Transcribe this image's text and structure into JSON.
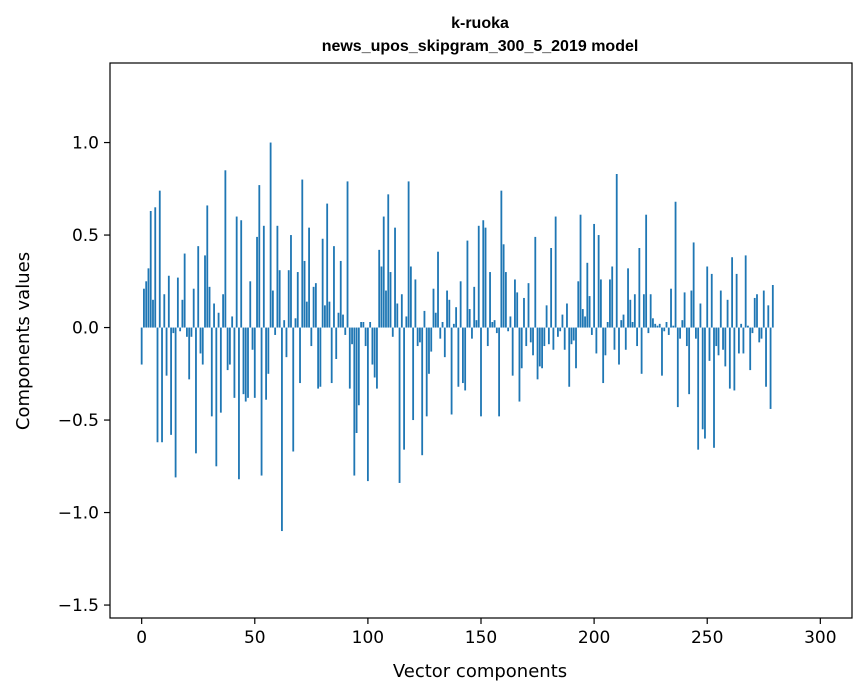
{
  "chart_data": {
    "type": "bar",
    "title_line1": "k-ruoka",
    "title_line2": "news_upos_skipgram_300_5_2019 model",
    "xlabel": "Vector components",
    "ylabel": "Components values",
    "xlim": [
      -14,
      314
    ],
    "ylim": [
      -1.57,
      1.43
    ],
    "xticks": [
      0,
      50,
      100,
      150,
      200,
      250,
      300
    ],
    "xtick_labels": [
      "0",
      "50",
      "100",
      "150",
      "200",
      "250",
      "300"
    ],
    "yticks": [
      1.0,
      0.5,
      0.0,
      -0.5,
      -1.0,
      -1.5
    ],
    "ytick_labels": [
      "1.0",
      "0.5",
      "0.0",
      "−0.5",
      "−1.0",
      "−1.5"
    ],
    "grid": false,
    "bar_color": "#1f77b4",
    "x_start": 0,
    "values": [
      -0.2,
      0.21,
      0.25,
      0.32,
      0.63,
      0.15,
      0.65,
      -0.62,
      0.74,
      -0.62,
      0.18,
      -0.26,
      0.28,
      -0.58,
      -0.03,
      -0.81,
      0.27,
      -0.02,
      0.15,
      0.4,
      -0.05,
      -0.28,
      -0.05,
      0.21,
      -0.68,
      0.44,
      -0.14,
      -0.2,
      0.39,
      0.66,
      0.22,
      -0.48,
      0.13,
      -0.75,
      0.08,
      -0.46,
      0.18,
      0.85,
      -0.23,
      -0.2,
      0.06,
      -0.38,
      0.6,
      -0.82,
      0.58,
      -0.36,
      -0.4,
      -0.38,
      0.25,
      -0.12,
      -0.38,
      0.49,
      0.77,
      -0.8,
      0.55,
      -0.39,
      -0.25,
      1.0,
      0.2,
      -0.04,
      0.55,
      0.31,
      -1.1,
      0.04,
      -0.16,
      0.31,
      0.5,
      -0.67,
      0.05,
      0.3,
      -0.3,
      0.8,
      0.36,
      0.14,
      0.54,
      -0.1,
      0.22,
      0.24,
      -0.33,
      -0.32,
      0.48,
      0.12,
      0.67,
      0.14,
      -0.3,
      0.44,
      -0.17,
      0.08,
      0.36,
      0.07,
      -0.04,
      0.79,
      -0.33,
      -0.09,
      -0.8,
      -0.57,
      -0.42,
      0.03,
      0.03,
      -0.1,
      -0.83,
      0.03,
      -0.2,
      -0.27,
      -0.33,
      0.42,
      0.33,
      0.6,
      0.2,
      0.72,
      0.3,
      -0.05,
      0.54,
      0.13,
      -0.84,
      0.18,
      -0.66,
      0.06,
      0.79,
      0.33,
      -0.5,
      0.26,
      -0.1,
      -0.08,
      -0.69,
      0.09,
      -0.48,
      -0.25,
      -0.13,
      0.21,
      0.08,
      0.41,
      -0.06,
      0.03,
      -0.16,
      0.2,
      0.15,
      -0.47,
      0.02,
      0.11,
      -0.32,
      0.25,
      -0.3,
      -0.34,
      0.47,
      0.1,
      -0.06,
      0.22,
      0.04,
      0.55,
      -0.48,
      0.58,
      0.54,
      -0.1,
      0.3,
      0.03,
      0.04,
      -0.03,
      -0.48,
      0.74,
      0.45,
      0.3,
      -0.02,
      0.06,
      -0.26,
      0.26,
      0.19,
      -0.4,
      -0.22,
      0.16,
      -0.1,
      0.24,
      -0.08,
      -0.15,
      0.49,
      -0.28,
      -0.21,
      -0.22,
      -0.1,
      0.12,
      -0.09,
      0.43,
      -0.12,
      0.6,
      -0.05,
      -0.02,
      0.07,
      -0.12,
      0.13,
      -0.32,
      -0.09,
      -0.07,
      -0.22,
      0.25,
      0.61,
      0.1,
      0.06,
      0.35,
      0.17,
      -0.04,
      0.56,
      -0.14,
      0.5,
      0.26,
      -0.3,
      -0.15,
      0.03,
      0.26,
      0.33,
      -0.12,
      0.83,
      -0.2,
      0.04,
      0.07,
      -0.12,
      0.32,
      0.15,
      0.03,
      0.18,
      -0.1,
      0.43,
      -0.25,
      0.18,
      0.61,
      -0.03,
      0.18,
      0.05,
      0.02,
      0.01,
      0.02,
      -0.26,
      -0.02,
      0.03,
      -0.04,
      0.21,
      0.01,
      0.68,
      -0.43,
      -0.06,
      0.04,
      0.19,
      -0.1,
      -0.36,
      0.2,
      0.46,
      -0.06,
      -0.66,
      0.13,
      -0.55,
      -0.6,
      0.33,
      -0.18,
      0.29,
      -0.65,
      -0.1,
      -0.15,
      0.2,
      -0.12,
      -0.21,
      0.15,
      -0.33,
      0.38,
      -0.34,
      0.29,
      -0.14,
      0.02,
      -0.14,
      0.39,
      0.01,
      -0.23,
      -0.03,
      0.16,
      0.18,
      -0.08,
      -0.06,
      0.2,
      -0.32,
      0.12,
      -0.44,
      0.23
    ]
  }
}
